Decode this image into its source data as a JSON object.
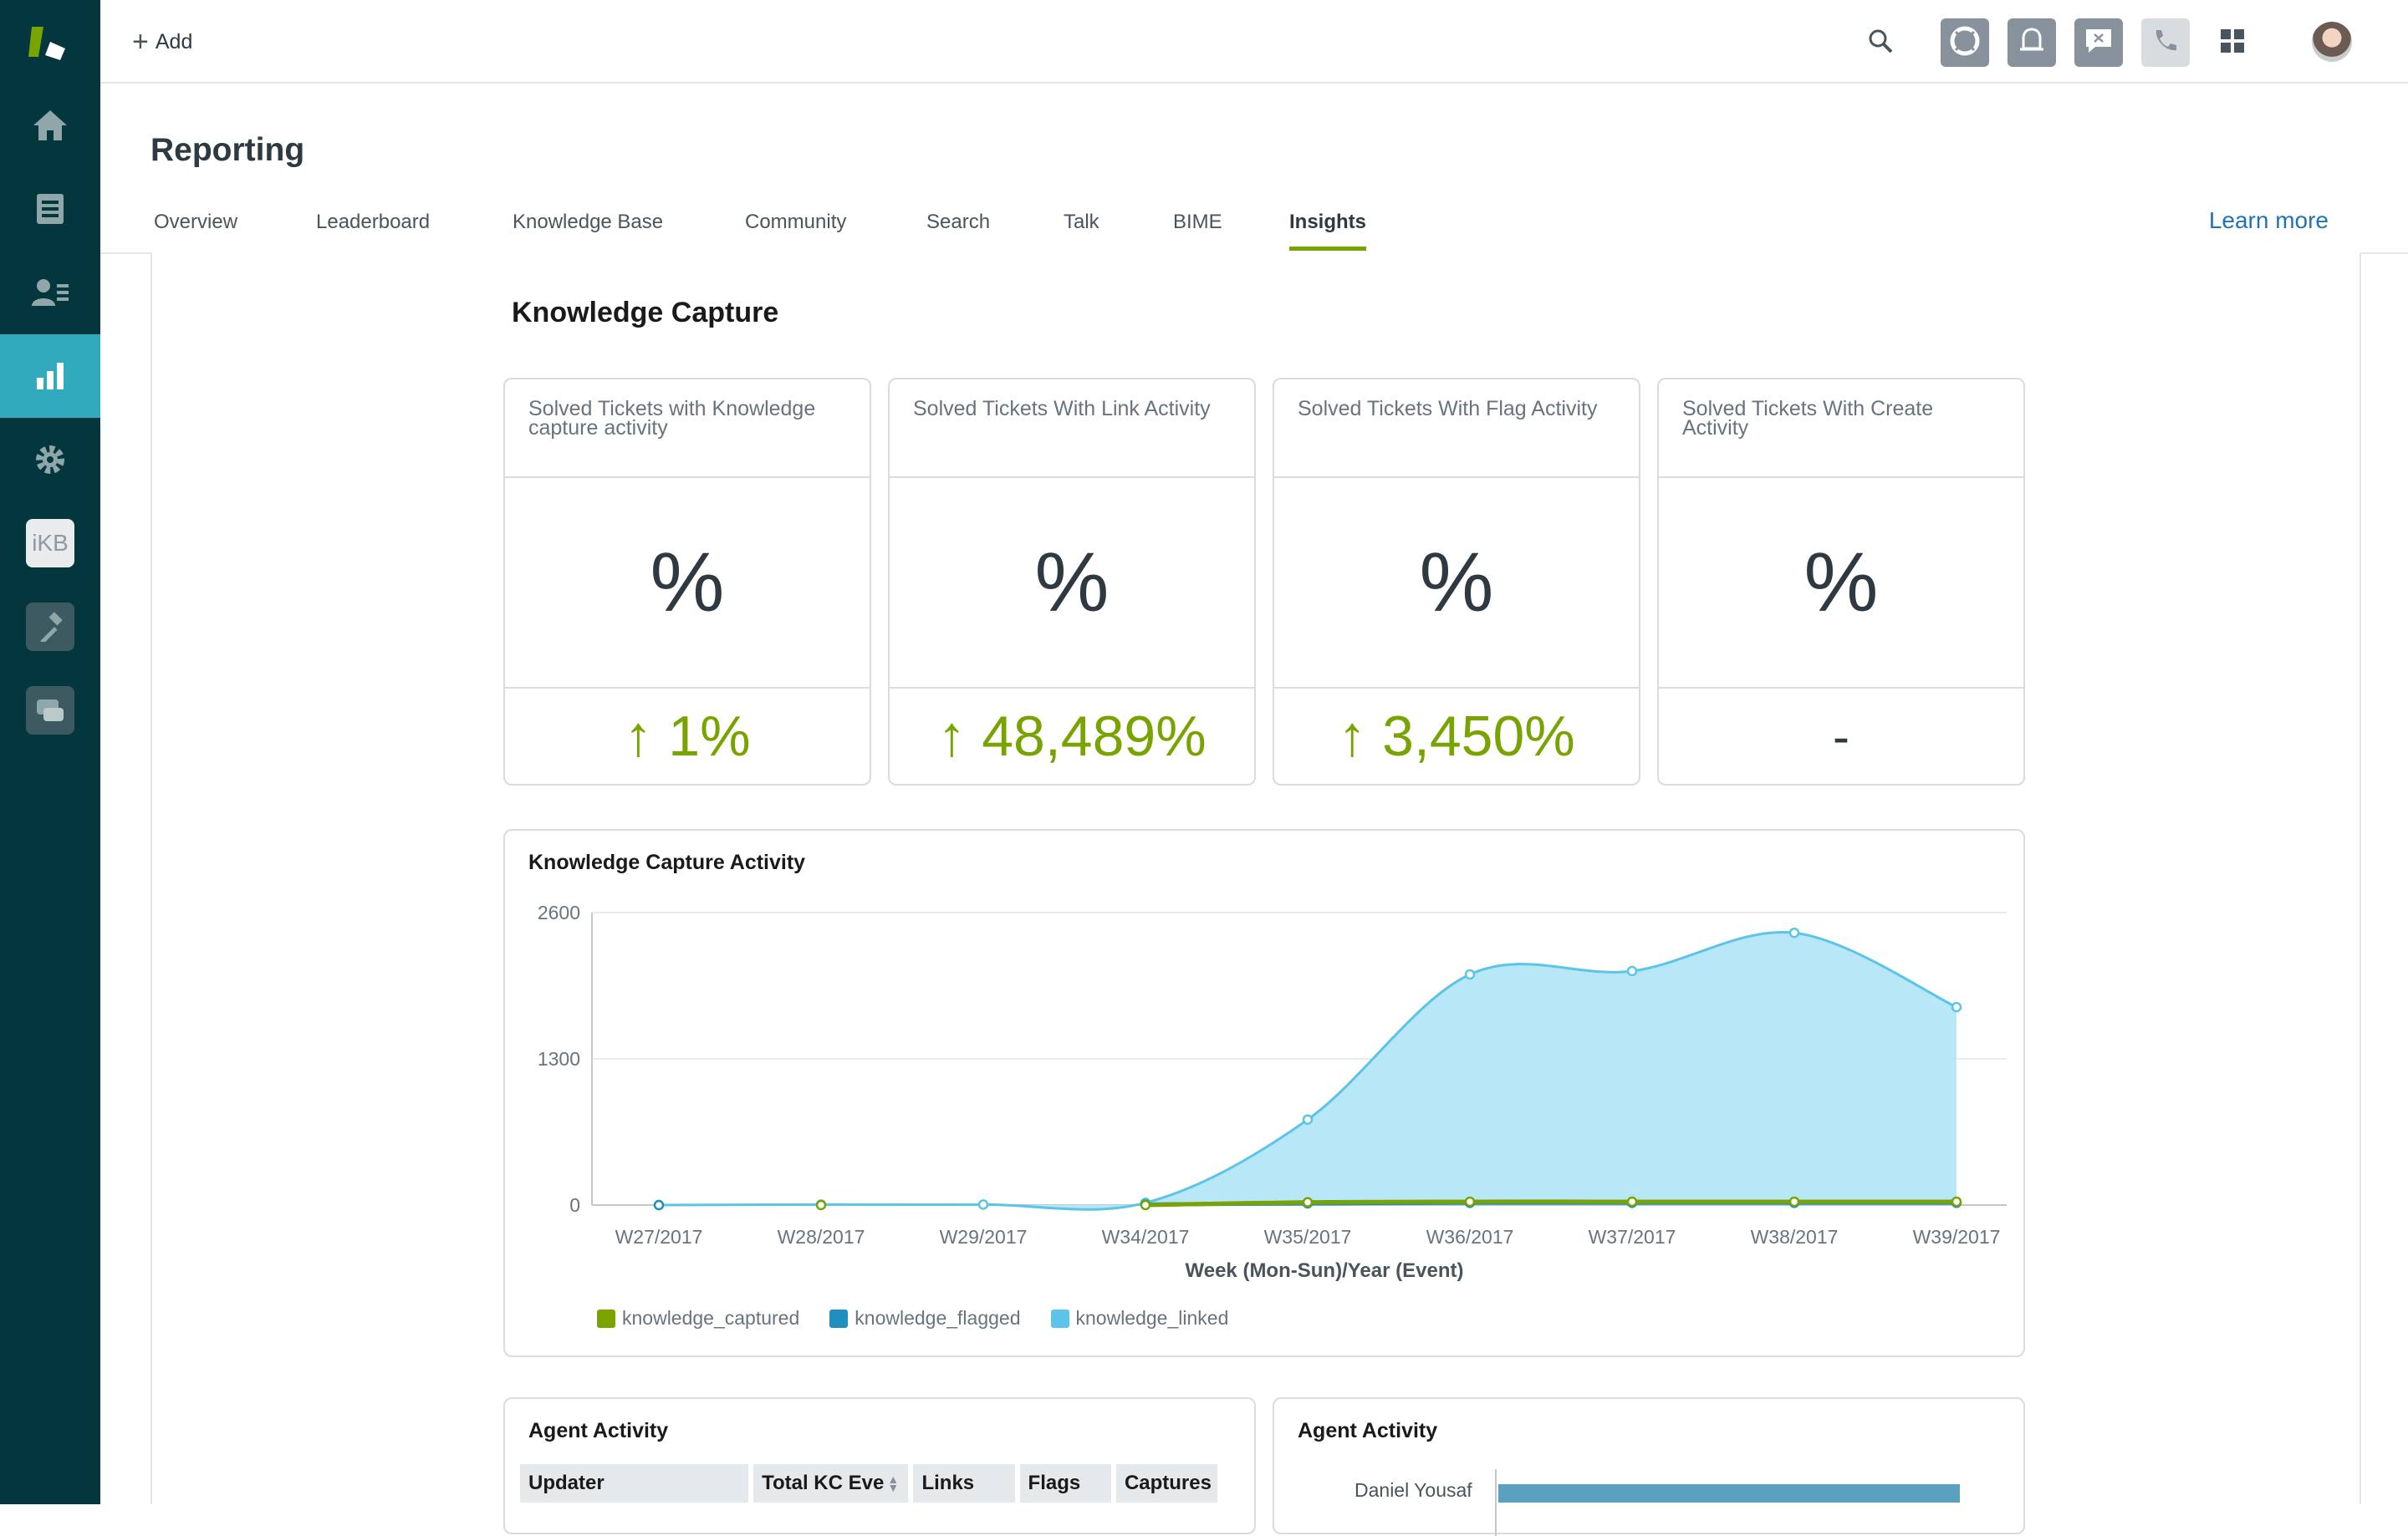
{
  "header": {
    "add_label": "Add"
  },
  "page": {
    "title": "Reporting",
    "learn_more": "Learn more",
    "tabs": [
      "Overview",
      "Leaderboard",
      "Knowledge Base",
      "Community",
      "Search",
      "Talk",
      "BIME",
      "Insights"
    ],
    "active_tab": "Insights"
  },
  "sidebar": {
    "ikb_label": "iKB"
  },
  "section": {
    "title": "Knowledge Capture"
  },
  "kpis": [
    {
      "title": "Solved Tickets with Knowledge capture activity",
      "value": "%",
      "delta": "↑ 1%"
    },
    {
      "title": "Solved Tickets With Link Activity",
      "value": "%",
      "delta": "↑ 48,489%"
    },
    {
      "title": "Solved Tickets With Flag Activity",
      "value": "%",
      "delta": "↑ 3,450%"
    },
    {
      "title": "Solved Tickets With Create Activity",
      "value": "%",
      "delta": "-"
    }
  ],
  "activity_chart": {
    "title": "Knowledge Capture Activity"
  },
  "chart_data": {
    "type": "area",
    "title": "Knowledge Capture Activity",
    "xlabel": "Week (Mon-Sun)/Year (Event)",
    "ylabel": "",
    "categories": [
      "W27/2017",
      "W28/2017",
      "W29/2017",
      "W34/2017",
      "W35/2017",
      "W36/2017",
      "W37/2017",
      "W38/2017",
      "W39/2017"
    ],
    "yticks": [
      "2600",
      "1300",
      "0"
    ],
    "ylim": [
      0,
      2600
    ],
    "grid": true,
    "legend_position": "bottom",
    "series": [
      {
        "name": "knowledge_captured",
        "color": "#78a300",
        "values": [
          null,
          0,
          null,
          0,
          25,
          30,
          30,
          30,
          30
        ]
      },
      {
        "name": "knowledge_flagged",
        "color": "#1f8fbf",
        "values": [
          0,
          null,
          null,
          5,
          15,
          20,
          20,
          20,
          20
        ]
      },
      {
        "name": "knowledge_linked",
        "color": "#5bc4e8",
        "values": [
          0,
          5,
          5,
          20,
          760,
          2050,
          2080,
          2420,
          1760
        ]
      }
    ]
  },
  "agent_table": {
    "title": "Agent Activity",
    "columns": [
      "Updater",
      "Total KC Eve",
      "Links",
      "Flags",
      "Captures"
    ]
  },
  "agent_bars": {
    "title": "Agent Activity",
    "rows": [
      {
        "name": "Daniel Yousaf"
      }
    ]
  },
  "colors": {
    "sidebar": "#03363d",
    "sidebar_active": "#30aabc",
    "accent_green": "#78a300",
    "link_blue": "#1f73b7"
  }
}
